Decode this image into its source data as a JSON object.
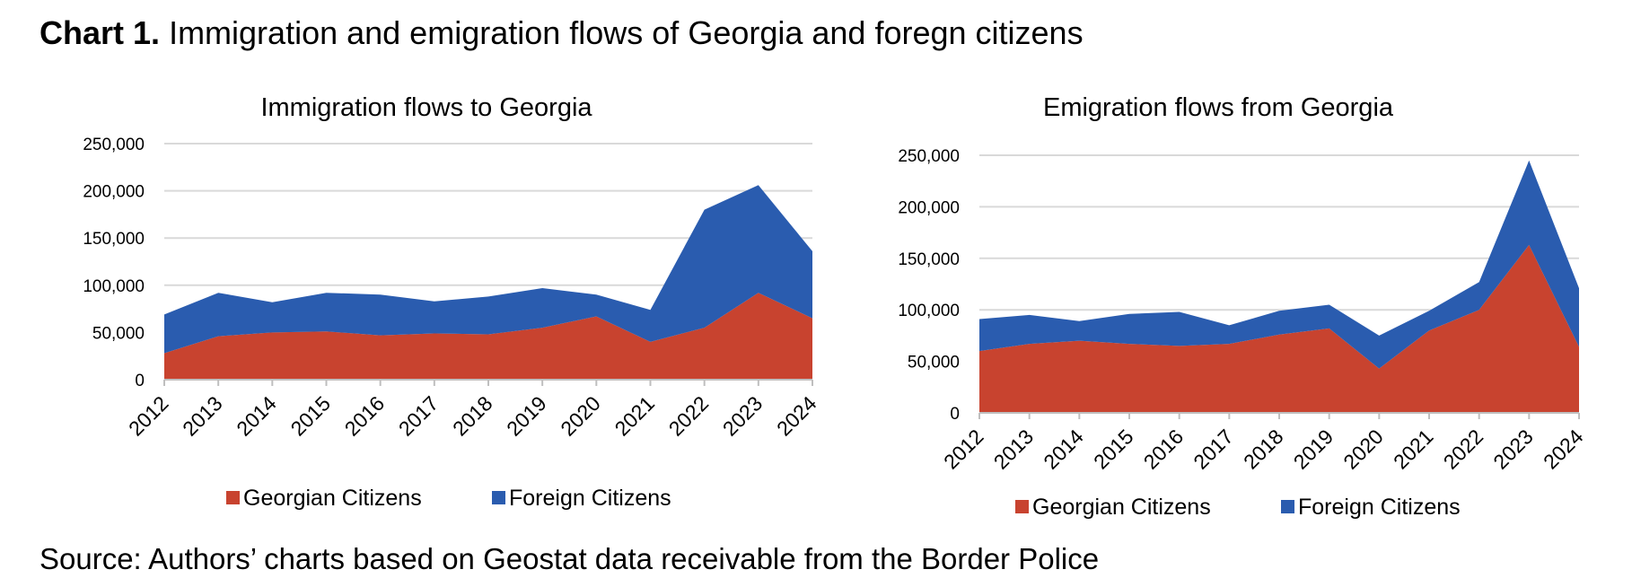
{
  "heading": {
    "bold": "Chart 1.",
    "text": "Immigration and emigration flows of Georgia and foregn citizens"
  },
  "source": "Source: Authors’ charts based on Geostat data receivable from the Border Police",
  "colors": {
    "georgian": "#c8432f",
    "foreign": "#2a5caf",
    "grid": "#d9d9d9"
  },
  "chart_data": [
    {
      "type": "area",
      "stacked": true,
      "title": "Immigration flows to Georgia",
      "x": [
        "2012",
        "2013",
        "2014",
        "2015",
        "2016",
        "2017",
        "2018",
        "2019",
        "2020",
        "2021",
        "2022",
        "2023",
        "2024"
      ],
      "y_ticks": [
        "0",
        "50,000",
        "100,000",
        "150,000",
        "200,000",
        "250,000"
      ],
      "ylim": [
        0,
        250000
      ],
      "grid": true,
      "legend_position": "bottom",
      "series": [
        {
          "name": "Georgian Citizens",
          "color": "#c8432f",
          "values": [
            28000,
            46000,
            50000,
            51000,
            47000,
            49000,
            48000,
            55000,
            67000,
            40000,
            55000,
            92000,
            65000
          ]
        },
        {
          "name": "Foreign Citizens",
          "color": "#2a5caf",
          "values": [
            41000,
            46000,
            32000,
            41000,
            43000,
            34000,
            40000,
            42000,
            23000,
            34000,
            125000,
            114000,
            71000
          ]
        }
      ]
    },
    {
      "type": "area",
      "stacked": true,
      "title": "Emigration flows from Georgia",
      "x": [
        "2012",
        "2013",
        "2014",
        "2015",
        "2016",
        "2017",
        "2018",
        "2019",
        "2020",
        "2021",
        "2022",
        "2023",
        "2024"
      ],
      "y_ticks": [
        "0",
        "50,000",
        "100,000",
        "150,000",
        "200,000",
        "250,000"
      ],
      "ylim": [
        0,
        250000
      ],
      "grid": true,
      "legend_position": "bottom",
      "series": [
        {
          "name": "Georgian Citizens",
          "color": "#c8432f",
          "values": [
            60000,
            67000,
            70000,
            67000,
            65000,
            67000,
            76000,
            82000,
            43000,
            80000,
            100000,
            163000,
            64000
          ]
        },
        {
          "name": "Foreign Citizens",
          "color": "#2a5caf",
          "values": [
            31000,
            28000,
            19000,
            29000,
            33000,
            18000,
            23000,
            23000,
            32000,
            19000,
            27000,
            82000,
            57000
          ]
        }
      ]
    }
  ]
}
